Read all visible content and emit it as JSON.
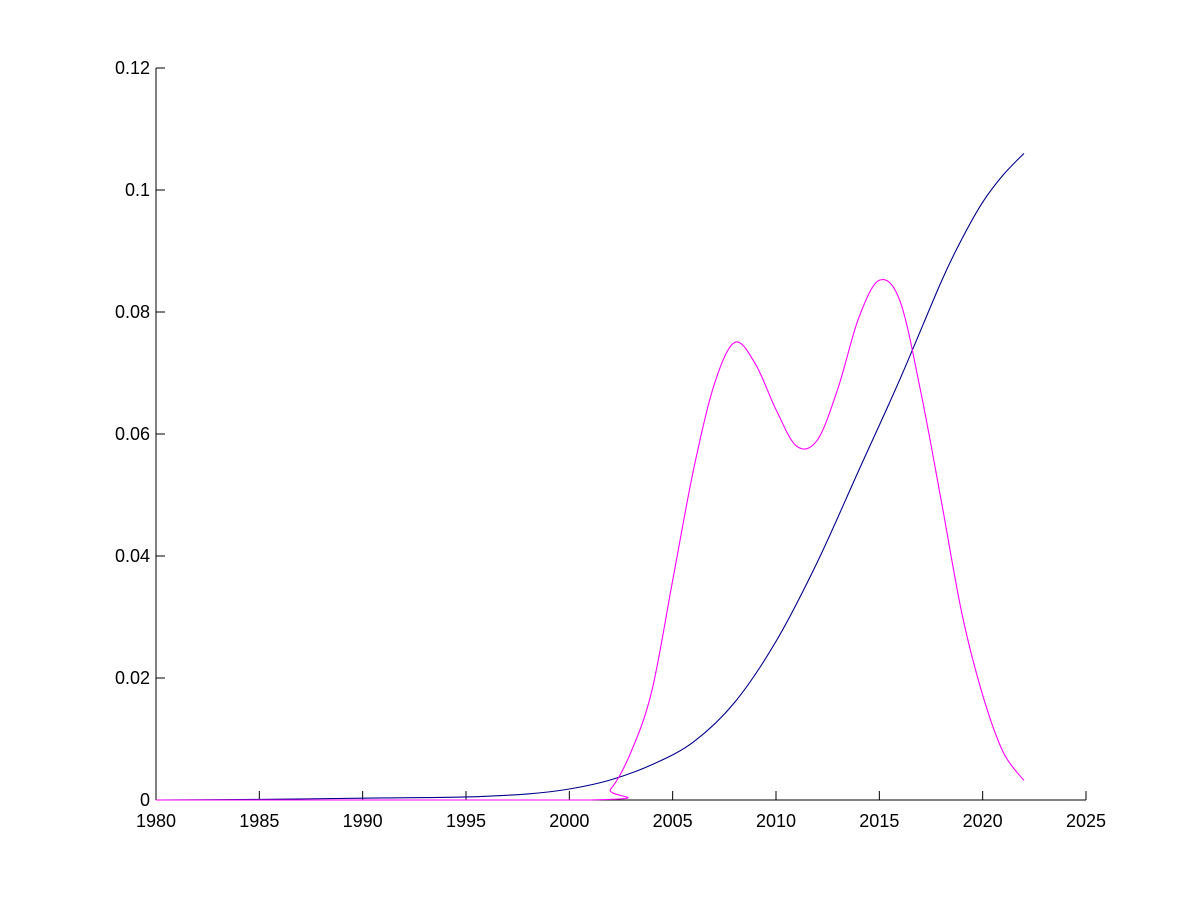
{
  "chart_data": {
    "type": "line",
    "title": "",
    "xlabel": "",
    "ylabel": "",
    "xlim": [
      1980,
      2025
    ],
    "ylim": [
      0,
      0.12
    ],
    "x_ticks": [
      "1980",
      "1985",
      "1990",
      "1995",
      "2000",
      "2005",
      "2010",
      "2015",
      "2020",
      "2025"
    ],
    "y_ticks": [
      "0",
      "0.02",
      "0.04",
      "0.06",
      "0.08",
      "0.1",
      "0.12"
    ],
    "grid": false,
    "series": [
      {
        "color": "#00008b",
        "x": [
          1980,
          1985,
          1990,
          1995,
          1998,
          2000,
          2002,
          2004,
          2006,
          2008,
          2010,
          2012,
          2014,
          2016,
          2018,
          2019,
          2020,
          2021,
          2022
        ],
        "y": [
          0,
          0.0001,
          0.0003,
          0.0005,
          0.001,
          0.0018,
          0.0033,
          0.0058,
          0.0095,
          0.016,
          0.026,
          0.039,
          0.054,
          0.069,
          0.085,
          0.092,
          0.098,
          0.1025,
          0.106
        ]
      },
      {
        "color": "#ff00ff",
        "x": [
          1980,
          2001,
          2002,
          2003,
          2004,
          2005,
          2006,
          2007,
          2008,
          2009,
          2010,
          2011,
          2012,
          2013,
          2014,
          2015,
          2016,
          2017,
          2018,
          2019,
          2020,
          2021,
          2022
        ],
        "y": [
          0,
          0,
          0.0018,
          0.008,
          0.018,
          0.036,
          0.054,
          0.068,
          0.075,
          0.0715,
          0.064,
          0.058,
          0.059,
          0.0675,
          0.079,
          0.0852,
          0.0818,
          0.067,
          0.049,
          0.0305,
          0.0172,
          0.0078,
          0.0032
        ]
      }
    ]
  }
}
